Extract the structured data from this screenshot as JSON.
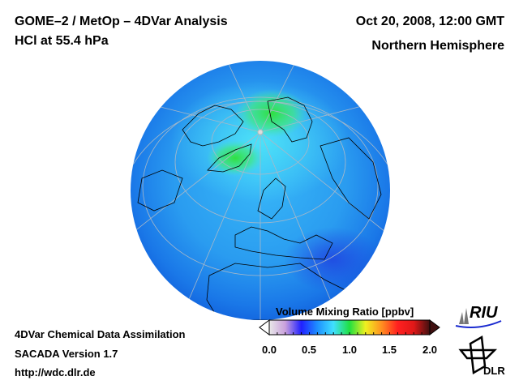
{
  "header": {
    "title_line1": "GOME–2 / MetOp – 4DVar Analysis",
    "title_line2": "HCl at 55.4 hPa",
    "date": "Oct 20, 2008, 12:00 GMT",
    "region": "Northern Hemisphere"
  },
  "footer": {
    "line1": "4DVar Chemical Data Assimilation",
    "line2": "SACADA Version 1.7",
    "url": "http://wdc.dlr.de"
  },
  "colorbar": {
    "title": "Volume Mixing Ratio [ppbv]",
    "ticks": [
      "0.0",
      "0.5",
      "1.0",
      "1.5",
      "2.0"
    ],
    "range": [
      0.0,
      2.0
    ],
    "colors": [
      "#e8e8e8",
      "#c9a0dc",
      "#2020ff",
      "#1e90ff",
      "#40e0ff",
      "#20e040",
      "#f0f020",
      "#ff9020",
      "#ff2020",
      "#e01818",
      "#401010"
    ]
  },
  "logos": {
    "riu": "RIU",
    "dlr": "DLR"
  }
}
